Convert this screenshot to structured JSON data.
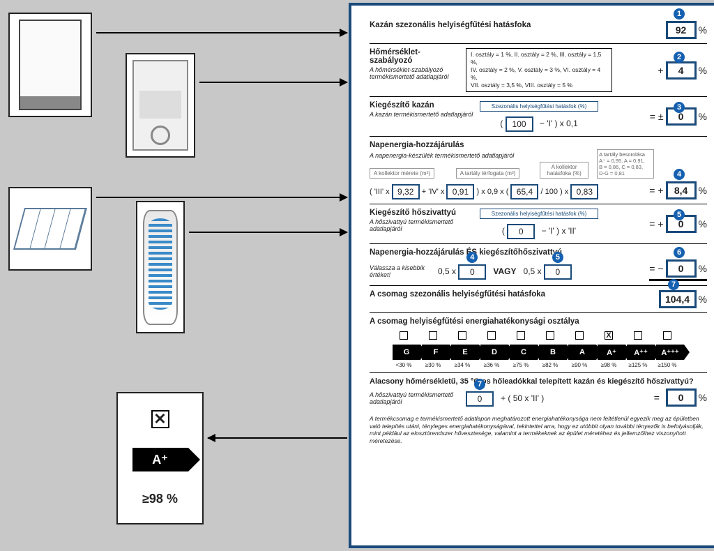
{
  "leftComponents": {
    "boiler": "Kazán",
    "thermostat": "Hőmérséklet-szabályozó",
    "solar": "Napkollektor",
    "tank": "Tartály",
    "ratingClass": "A⁺",
    "ratingThreshold": "≥98 %",
    "ratingCheck": "✕"
  },
  "rows": {
    "r1": {
      "title": "Kazán szezonális helyiségfűtési hatásfoka",
      "value": "92",
      "badge": "1"
    },
    "r2": {
      "title": "Hőmérséklet-szabályozó",
      "sub": "A hőmérséklet-szabályozó termékismertető adatlapjáról",
      "info1": "I. osztály = 1 %, II. osztály = 2 %, III. osztály = 1,5 %,",
      "info2": "IV. osztály = 2 %, V. osztály = 3 %, VI. osztály = 4 %,",
      "info3": "VII. osztály = 3,5 %, VIII. osztály = 5 %",
      "value": "4",
      "badge": "2"
    },
    "r3": {
      "title": "Kiegészítő kazán",
      "sub": "A kazán termékismertető adatlapjáról",
      "boxlabel": "Szezonális helyiségfűtési hatásfok (%)",
      "v100": "100",
      "formula_a": "(",
      "formula_b": "−   'I'   )  x  0,1",
      "eq": "=   ±",
      "value": "0",
      "badge": "3"
    },
    "r4": {
      "title": "Napenergia-hozzájárulás",
      "sub": "A napenergia-készülék termékismertető adatlapjáról",
      "lbl1": "A kollektor mérete (m²)",
      "lbl2": "A tartály térfogata (m³)",
      "lbl3": "A kollektor hatásfoka (%)",
      "lbl4t": "A tartály besorolása",
      "lbl4a": "A⁺ = 0,95, A = 0,91,",
      "lbl4b": "B = 0,86, C = 0,83,",
      "lbl4c": "D-G = 0,81",
      "pre": "( 'III' x",
      "v1": "9,32",
      "mid1": "+ 'IV' x",
      "v2": "0,91",
      "mid2": ")  x 0,9 x (",
      "v3": "65,4",
      "mid3": "/ 100 )  x",
      "v4": "0,83",
      "eq": "=   +",
      "value": "8,4",
      "badge": "4"
    },
    "r5": {
      "title": "Kiegészítő hőszivattyú",
      "sub": "A hőszivattyú termékismertető adatlapjáról",
      "boxlabel": "Szezonális helyiségfűtési hatásfok (%)",
      "v0": "0",
      "formula": "−    'I'   )   x   'II'",
      "eq": "=   +",
      "value": "0",
      "badge": "5"
    },
    "r6": {
      "title": "Napenergia-hozzájárulás ÉS kiegészítőhőszivattyú",
      "sub": "Válassza a kisebbik értéket!",
      "p1": "0,5 x",
      "b4": "4",
      "v4": "0",
      "vagy": "VAGY",
      "p2": "0,5 x",
      "b5": "5",
      "v5": "0",
      "eq": "=   −",
      "value": "0",
      "badge": "6"
    },
    "r7": {
      "title": "A csomag szezonális helyiségfűtési hatásfoka",
      "value": "104,4",
      "badge": "7"
    },
    "r8": {
      "title": "A csomag helyiségfűtési energiahatékonysági osztálya",
      "classes": [
        "G",
        "F",
        "E",
        "D",
        "C",
        "B",
        "A",
        "A⁺",
        "A⁺⁺",
        "A⁺⁺⁺"
      ],
      "checks": [
        "",
        "",
        "",
        "",
        "",
        "",
        "",
        "X",
        "",
        ""
      ],
      "pcts": [
        "<30 %",
        "≥30 %",
        "≥34 %",
        "≥36 %",
        "≥75 %",
        "≥82 %",
        "≥90 %",
        "≥98 %",
        "≥125 %",
        "≥150 %"
      ]
    },
    "r9": {
      "title": "Alacsony hőmérsékletű, 35 °C-os hőleadókkal telepített kazán és kiegészítő hőszivattyú?",
      "sub": "A hőszivattyú termékismertető adatlapjáról",
      "v0": "0",
      "formula": "+   (  50 x    'II'    )",
      "eq": "=",
      "value": "0",
      "badge": "7"
    },
    "disclaimer": "A termékcsomag e termékismertető adatlapon meghatározott energiahatékonysága nem feltétlenül egyezik meg az épületben való telepítés utáni, tényleges energiahatékonyságával, tekintettel arra, hogy ez utóbbit olyan további tényezők is befolyásolják, mint például az elosztórendszer hővesztesége, valamint a termékeknek az épület méretéhez és jellemzőihez viszonyított méretezése."
  }
}
